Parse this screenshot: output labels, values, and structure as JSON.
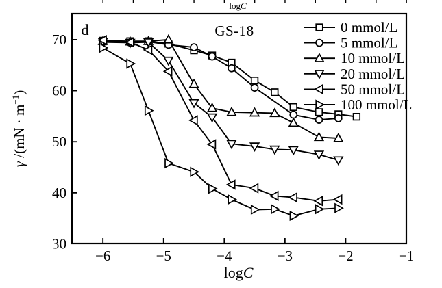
{
  "chart_data": {
    "type": "line",
    "title": "GS-18",
    "panel_label": "d",
    "top_axis_label": {
      "log": "log",
      "c": "C"
    },
    "xlabel": {
      "log": "log",
      "c": "C"
    },
    "ylabel": {
      "gamma": "γ",
      "rest": " /(mN · m",
      "sup": "−1",
      "close": ")"
    },
    "xlim": [
      -6.51,
      -1.0
    ],
    "ylim": [
      30.07,
      75.08
    ],
    "x_ticks": [
      -6,
      -5,
      -4,
      -3,
      -2,
      -1
    ],
    "x_tick_labels": [
      "−6",
      "−5",
      "−4",
      "−3",
      "−2",
      "−1"
    ],
    "y_ticks": [
      30,
      40,
      50,
      60,
      70
    ],
    "y_tick_labels": [
      "30",
      "40",
      "50",
      "60",
      "70"
    ],
    "grid": false,
    "legend_position": "top-right-inside",
    "colors": {
      "foreground": "#000000",
      "background": "#ffffff"
    },
    "series": [
      {
        "name": "0 mmol/L",
        "marker": "square",
        "points": [
          [
            -6.0,
            69.8
          ],
          [
            -5.55,
            69.7
          ],
          [
            -5.25,
            69.7
          ],
          [
            -4.92,
            69.2
          ],
          [
            -4.5,
            67.9
          ],
          [
            -4.2,
            66.9
          ],
          [
            -3.88,
            65.5
          ],
          [
            -3.5,
            62.0
          ],
          [
            -3.17,
            59.7
          ],
          [
            -2.86,
            56.8
          ],
          [
            -2.44,
            55.8
          ],
          [
            -2.12,
            55.4
          ],
          [
            -1.82,
            54.9
          ]
        ]
      },
      {
        "name": "5 mmol/L",
        "marker": "circle",
        "points": [
          [
            -6.0,
            69.5
          ],
          [
            -5.55,
            69.4
          ],
          [
            -5.25,
            69.6
          ],
          [
            -4.92,
            69.0
          ],
          [
            -4.5,
            68.5
          ],
          [
            -4.2,
            66.7
          ],
          [
            -3.88,
            64.4
          ],
          [
            -3.5,
            60.6
          ],
          [
            -2.86,
            55.3
          ],
          [
            -2.44,
            54.3
          ],
          [
            -2.12,
            54.6
          ]
        ]
      },
      {
        "name": "10 mmol/L",
        "marker": "triangle-up",
        "points": [
          [
            -6.0,
            69.7
          ],
          [
            -5.55,
            69.6
          ],
          [
            -5.25,
            69.7
          ],
          [
            -4.92,
            70.0
          ],
          [
            -4.5,
            61.3
          ],
          [
            -4.2,
            56.6
          ],
          [
            -3.88,
            55.8
          ],
          [
            -3.5,
            55.7
          ],
          [
            -3.17,
            55.6
          ],
          [
            -2.86,
            53.7
          ],
          [
            -2.44,
            50.9
          ],
          [
            -2.12,
            50.7
          ]
        ]
      },
      {
        "name": "20 mmol/L",
        "marker": "triangle-down",
        "points": [
          [
            -6.0,
            69.6
          ],
          [
            -5.55,
            69.4
          ],
          [
            -5.25,
            69.5
          ],
          [
            -4.92,
            65.9
          ],
          [
            -4.5,
            57.6
          ],
          [
            -4.2,
            54.8
          ],
          [
            -3.88,
            49.6
          ],
          [
            -3.5,
            49.1
          ],
          [
            -3.17,
            48.5
          ],
          [
            -2.86,
            48.4
          ],
          [
            -2.44,
            47.5
          ],
          [
            -2.12,
            46.4
          ]
        ]
      },
      {
        "name": "50 mmol/L",
        "marker": "triangle-left",
        "points": [
          [
            -6.0,
            69.9
          ],
          [
            -5.55,
            69.5
          ],
          [
            -5.25,
            68.0
          ],
          [
            -4.92,
            63.8
          ],
          [
            -4.5,
            54.2
          ],
          [
            -4.2,
            49.5
          ],
          [
            -3.88,
            41.6
          ],
          [
            -3.5,
            40.9
          ],
          [
            -3.17,
            39.4
          ],
          [
            -2.86,
            39.1
          ],
          [
            -2.44,
            38.4
          ],
          [
            -2.12,
            38.7
          ]
        ]
      },
      {
        "name": "100 mmol/L",
        "marker": "triangle-right",
        "points": [
          [
            -6.0,
            68.4
          ],
          [
            -5.55,
            65.3
          ],
          [
            -5.25,
            56.1
          ],
          [
            -4.92,
            45.8
          ],
          [
            -4.5,
            44.1
          ],
          [
            -4.2,
            40.8
          ],
          [
            -3.88,
            38.7
          ],
          [
            -3.5,
            36.7
          ],
          [
            -3.17,
            36.8
          ],
          [
            -2.86,
            35.5
          ],
          [
            -2.44,
            36.8
          ],
          [
            -2.12,
            37.0
          ]
        ]
      }
    ]
  }
}
